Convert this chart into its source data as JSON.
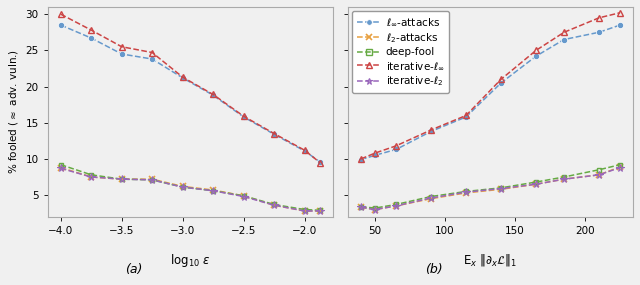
{
  "plot_a": {
    "x": [
      -4.0,
      -3.75,
      -3.5,
      -3.25,
      -3.0,
      -2.75,
      -2.5,
      -2.25,
      -2.0,
      -1.875
    ],
    "linf_attacks": [
      28.5,
      26.7,
      24.5,
      23.8,
      21.2,
      18.8,
      15.8,
      13.4,
      11.1,
      9.6
    ],
    "l2_attacks": [
      8.8,
      7.5,
      7.2,
      7.2,
      6.2,
      5.7,
      4.9,
      3.6,
      2.8,
      2.8
    ],
    "deep_fool": [
      9.2,
      7.8,
      7.2,
      7.1,
      6.1,
      5.6,
      4.9,
      3.7,
      3.0,
      2.9
    ],
    "iter_linf": [
      30.0,
      27.8,
      25.5,
      24.7,
      21.3,
      18.9,
      15.9,
      13.5,
      11.2,
      9.5
    ],
    "iter_l2": [
      8.7,
      7.5,
      7.2,
      7.1,
      6.1,
      5.6,
      4.8,
      3.6,
      2.8,
      2.8
    ],
    "xticks": [
      -4.0,
      -3.5,
      -3.0,
      -2.5,
      -2.0
    ],
    "xlabel": "log$_{10}$ $\\epsilon$",
    "panel_label": "(a)"
  },
  "plot_b": {
    "x": [
      40,
      50,
      65,
      90,
      115,
      140,
      165,
      185,
      210,
      225
    ],
    "linf_attacks": [
      9.9,
      10.5,
      11.3,
      13.8,
      15.8,
      20.5,
      24.2,
      26.5,
      27.5,
      28.5
    ],
    "l2_attacks": [
      3.3,
      3.0,
      3.5,
      4.5,
      5.3,
      5.8,
      6.5,
      7.2,
      7.8,
      8.9
    ],
    "deep_fool": [
      3.4,
      3.2,
      3.7,
      4.8,
      5.5,
      6.0,
      6.8,
      7.5,
      8.5,
      9.2
    ],
    "iter_linf": [
      10.0,
      10.8,
      11.8,
      14.0,
      16.0,
      21.0,
      25.0,
      27.5,
      29.5,
      30.2
    ],
    "iter_l2": [
      3.3,
      3.0,
      3.5,
      4.6,
      5.4,
      5.9,
      6.5,
      7.2,
      7.8,
      8.8
    ],
    "xticks": [
      50,
      100,
      150,
      200
    ],
    "xlabel": "E$_x$ $\\|\\partial_x \\mathcal{L}\\|_1$",
    "panel_label": "(b)"
  },
  "colors": {
    "linf_attacks": "#6699cc",
    "l2_attacks": "#e8a040",
    "deep_fool": "#66aa44",
    "iter_linf": "#cc4444",
    "iter_l2": "#9966bb"
  },
  "legend_labels": [
    "$\\ell_\\infty$-attacks",
    "$\\ell_2$-attacks",
    "deep-fool",
    "iterative-$\\ell_\\infty$",
    "iterative-$\\ell_2$"
  ],
  "ylabel": "% fooled ($\\approx$ adv. vuln.)",
  "ylim": [
    2,
    31
  ],
  "yticks": [
    5,
    10,
    15,
    20,
    25,
    30
  ],
  "bg_color": "#f0f0f0",
  "axes_bg": "#f0f0f0"
}
